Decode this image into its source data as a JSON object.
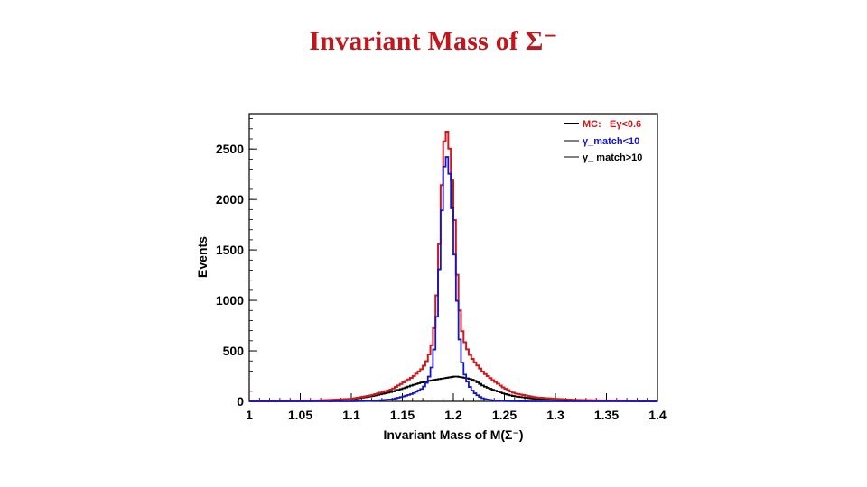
{
  "slide": {
    "title": "Invariant  Mass of Σ⁻"
  },
  "colors": {
    "title": "#c0161c",
    "series_total": "#d0171c",
    "series_match_lt10": "#1414c8",
    "series_match_gt10": "#000000"
  },
  "chart_data": {
    "type": "line",
    "style": "step-histogram",
    "title": "",
    "xlabel": "Invariant Mass of M(Σ⁻)",
    "ylabel": "Events",
    "xlim": [
      1.0,
      1.4
    ],
    "ylim": [
      0,
      2850
    ],
    "xticks": [
      1.0,
      1.05,
      1.1,
      1.15,
      1.2,
      1.25,
      1.3,
      1.35,
      1.4
    ],
    "xtick_labels": [
      "1",
      "1.05",
      "1.1",
      "1.15",
      "1.2",
      "1.25",
      "1.3",
      "1.35",
      "1.4"
    ],
    "yticks": [
      0,
      500,
      1000,
      1500,
      2000,
      2500
    ],
    "ytick_labels": [
      "0",
      "500",
      "1000",
      "1500",
      "2000",
      "2500"
    ],
    "grid": false,
    "legend_position": "top-right",
    "bin_width": 0.0025,
    "x": [
      1.0,
      1.06,
      1.1,
      1.12,
      1.14,
      1.15,
      1.16,
      1.17,
      1.175,
      1.18,
      1.183,
      1.186,
      1.189,
      1.192,
      1.195,
      1.198,
      1.201,
      1.204,
      1.207,
      1.21,
      1.215,
      1.22,
      1.225,
      1.23,
      1.24,
      1.25,
      1.26,
      1.28,
      1.3,
      1.32,
      1.35,
      1.4
    ],
    "series": [
      {
        "name": "MC:  Eγ<0.6",
        "legend_label": "MC:",
        "legend_cut": "Eγ<0.6",
        "values": [
          0,
          5,
          25,
          60,
          120,
          180,
          240,
          330,
          420,
          600,
          900,
          1500,
          2200,
          2700,
          2650,
          2300,
          1850,
          1200,
          800,
          620,
          480,
          400,
          340,
          280,
          200,
          130,
          80,
          40,
          25,
          15,
          8,
          0
        ]
      },
      {
        "name": "γ_match<10",
        "legend_label": "γ_match<10",
        "values": [
          0,
          0,
          0,
          5,
          20,
          45,
          75,
          130,
          200,
          380,
          700,
          1250,
          1950,
          2450,
          2400,
          2050,
          1500,
          950,
          500,
          300,
          160,
          90,
          50,
          25,
          8,
          3,
          1,
          0,
          0,
          0,
          0,
          0
        ]
      },
      {
        "name": "γ_ match>10",
        "legend_label": "γ_ match>10",
        "values": [
          0,
          3,
          20,
          50,
          95,
          125,
          160,
          190,
          200,
          210,
          215,
          220,
          225,
          230,
          235,
          240,
          245,
          245,
          240,
          235,
          225,
          210,
          180,
          150,
          110,
          75,
          50,
          25,
          15,
          10,
          5,
          0
        ]
      }
    ]
  }
}
